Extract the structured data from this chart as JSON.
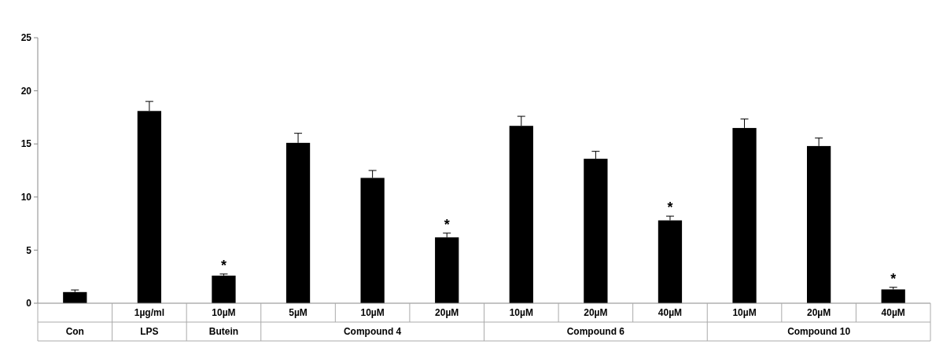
{
  "chart_data": {
    "type": "bar",
    "categories": [
      null,
      "1µg/ml",
      "10µM",
      "5µM",
      "10µM",
      "20µM",
      "10µM",
      "20µM",
      "40µM",
      "10µM",
      "20µM",
      "40µM"
    ],
    "values": [
      1.05,
      18.1,
      2.6,
      15.1,
      11.8,
      6.2,
      16.7,
      13.6,
      7.8,
      16.5,
      14.8,
      1.3
    ],
    "errors": [
      0.2,
      0.9,
      0.15,
      0.9,
      0.7,
      0.4,
      0.9,
      0.7,
      0.4,
      0.85,
      0.75,
      0.2
    ],
    "value_labels": [
      null,
      null,
      "*",
      null,
      null,
      "*",
      null,
      null,
      "*",
      null,
      null,
      "*"
    ],
    "color": "#000000",
    "ylim": [
      0,
      25
    ],
    "yticks": [
      0,
      5,
      10,
      15,
      20,
      25
    ],
    "grid": false,
    "annotations": [
      "Con",
      "LPS",
      "Butein",
      "Compound 4",
      "Compound 6",
      "Compound 10"
    ]
  }
}
